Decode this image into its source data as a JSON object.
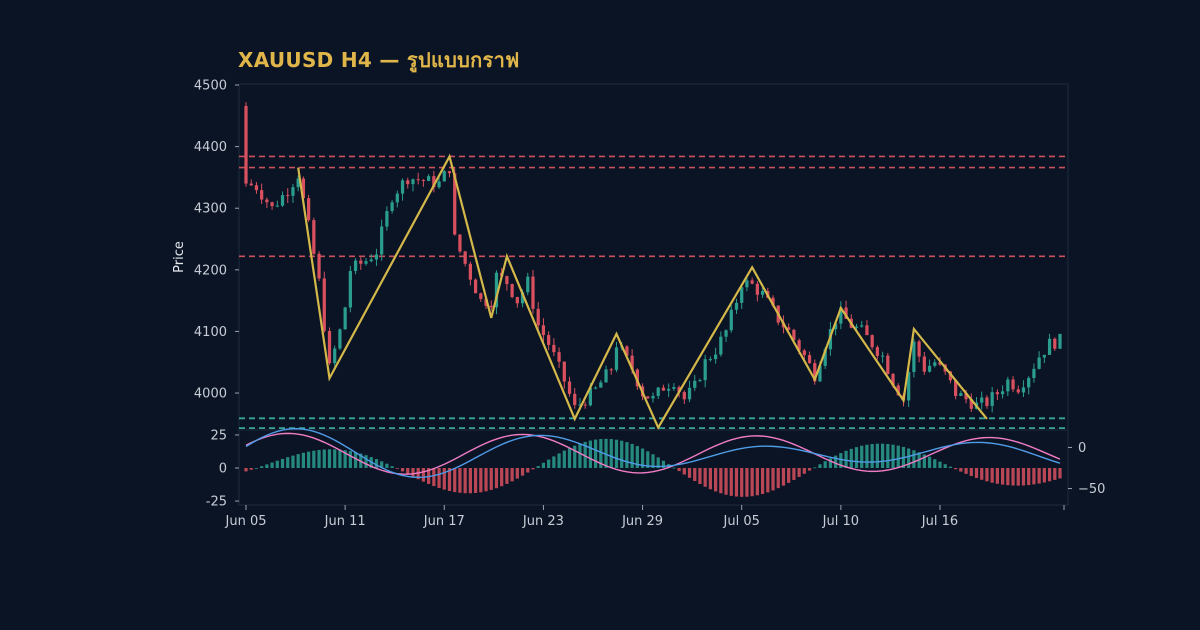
{
  "chart_data": {
    "type": "candlestick",
    "title": "XAUUSD H4 — รูปแบบกราฟ",
    "price_panel": {
      "ylabel": "Price",
      "ylim": [
        3940,
        4500
      ],
      "yticks": [
        4000,
        4100,
        4200,
        4300,
        4400,
        4500
      ],
      "xlim": [
        0,
        156
      ],
      "x_tick_labels": [
        {
          "label": "Jun 05",
          "x": 0
        },
        {
          "label": "Jun 11",
          "x": 19
        },
        {
          "label": "Jun 17",
          "x": 38
        },
        {
          "label": "Jun 23",
          "x": 57
        },
        {
          "label": "Jun 29",
          "x": 76
        },
        {
          "label": "Jul 05",
          "x": 95
        },
        {
          "label": "Jul 10",
          "x": 114
        },
        {
          "label": "Jul 16",
          "x": 133
        }
      ],
      "resistance_levels": [
        4384,
        4366,
        4222
      ],
      "support_levels": [
        3959,
        3943
      ],
      "zigzag": [
        [
          10,
          4366
        ],
        [
          16,
          4024
        ],
        [
          39,
          4384
        ],
        [
          47,
          4122
        ],
        [
          50,
          4222
        ],
        [
          63,
          3958
        ],
        [
          71,
          4096
        ],
        [
          79,
          3944
        ],
        [
          97,
          4204
        ],
        [
          109,
          4022
        ],
        [
          114,
          4138
        ],
        [
          126,
          3988
        ],
        [
          128,
          4104
        ],
        [
          142,
          3958
        ]
      ]
    },
    "indicator_panel": {
      "left_ylim": [
        -28,
        28
      ],
      "left_yticks": [
        25,
        0,
        -25
      ],
      "right_ylim": [
        -70,
        20
      ],
      "right_yticks": [
        0,
        -50
      ],
      "histogram_colors": {
        "positive": "#2a9d8f",
        "negative": "#d9505f"
      },
      "signal_colors": {
        "fast": "#4f9ce8",
        "slow": "#f07cc5"
      }
    },
    "price_anchor_path": [
      [
        0,
        4340
      ],
      [
        2,
        4335
      ],
      [
        5,
        4300
      ],
      [
        8,
        4330
      ],
      [
        10,
        4355
      ],
      [
        12,
        4270
      ],
      [
        14,
        4180
      ],
      [
        16,
        4040
      ],
      [
        18,
        4100
      ],
      [
        19,
        4140
      ],
      [
        20,
        4200
      ],
      [
        23,
        4215
      ],
      [
        25,
        4230
      ],
      [
        28,
        4320
      ],
      [
        31,
        4350
      ],
      [
        34,
        4345
      ],
      [
        37,
        4340
      ],
      [
        39,
        4366
      ],
      [
        40,
        4250
      ],
      [
        43,
        4190
      ],
      [
        45,
        4150
      ],
      [
        47,
        4150
      ],
      [
        48,
        4190
      ],
      [
        50,
        4180
      ],
      [
        52,
        4150
      ],
      [
        54,
        4180
      ],
      [
        56,
        4110
      ],
      [
        58,
        4080
      ],
      [
        61,
        4020
      ],
      [
        63,
        3975
      ],
      [
        65,
        3990
      ],
      [
        67,
        4005
      ],
      [
        70,
        4040
      ],
      [
        71,
        4080
      ],
      [
        74,
        4040
      ],
      [
        76,
        4000
      ],
      [
        78,
        3990
      ],
      [
        80,
        4010
      ],
      [
        82,
        4020
      ],
      [
        84,
        3990
      ],
      [
        86,
        4010
      ],
      [
        88,
        4050
      ],
      [
        90,
        4070
      ],
      [
        92,
        4100
      ],
      [
        94,
        4150
      ],
      [
        95,
        4180
      ],
      [
        97,
        4175
      ],
      [
        99,
        4160
      ],
      [
        102,
        4120
      ],
      [
        104,
        4100
      ],
      [
        107,
        4060
      ],
      [
        109,
        4030
      ],
      [
        111,
        4080
      ],
      [
        113,
        4120
      ],
      [
        114,
        4128
      ],
      [
        116,
        4110
      ],
      [
        118,
        4100
      ],
      [
        120,
        4080
      ],
      [
        122,
        4060
      ],
      [
        124,
        4020
      ],
      [
        126,
        3990
      ],
      [
        128,
        4080
      ],
      [
        130,
        4040
      ],
      [
        132,
        4050
      ],
      [
        134,
        4030
      ],
      [
        136,
        4000
      ],
      [
        138,
        3990
      ],
      [
        140,
        3980
      ],
      [
        142,
        3985
      ],
      [
        144,
        4000
      ],
      [
        146,
        4020
      ],
      [
        148,
        4010
      ],
      [
        150,
        4030
      ],
      [
        152,
        4060
      ],
      [
        154,
        4080
      ],
      [
        156,
        4085
      ]
    ]
  }
}
